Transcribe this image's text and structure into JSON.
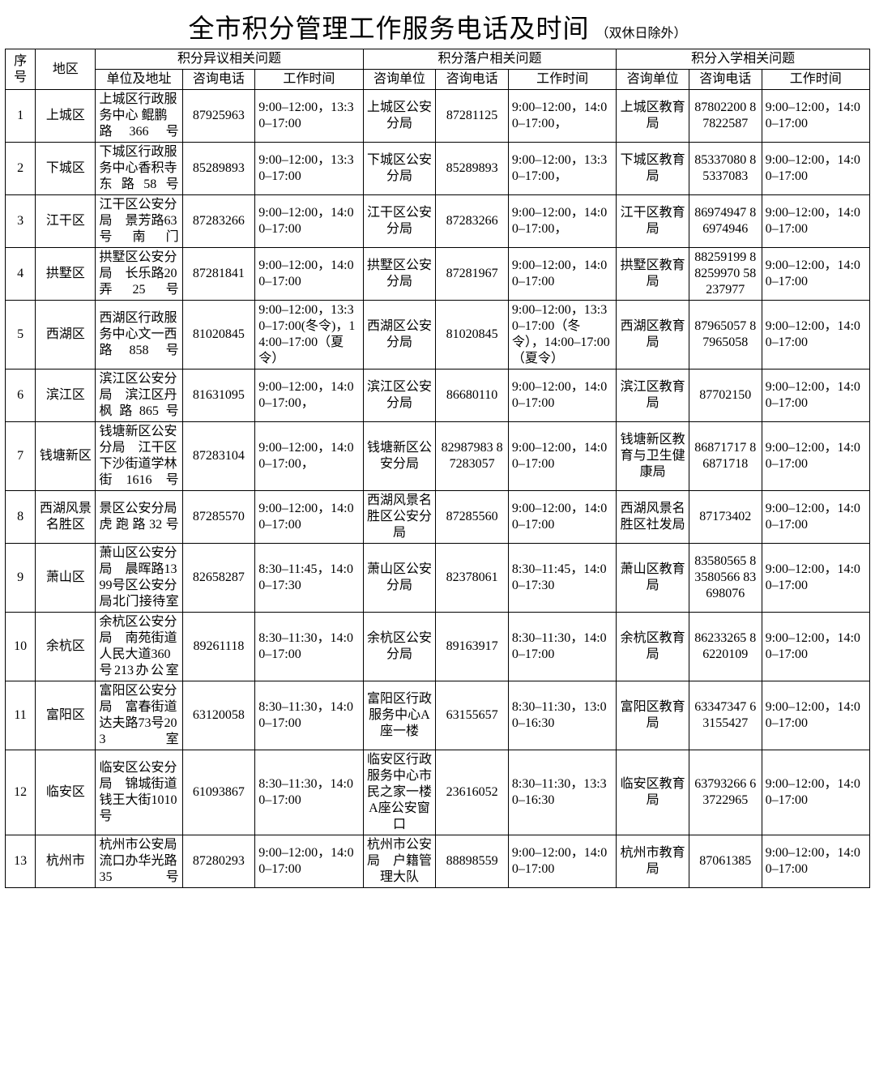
{
  "title": "全市积分管理工作服务电话及时间",
  "title_suffix": "（双休日除外）",
  "headers": {
    "idx": "序号",
    "area": "地区",
    "group_dispute": "积分异议相关问题",
    "group_settle": "积分落户相关问题",
    "group_school": "积分入学相关问题",
    "unit_addr": "单位及地址",
    "consult_unit": "咨询单位",
    "consult_tel": "咨询电话",
    "work_time": "工作时间"
  },
  "rows": [
    {
      "idx": "1",
      "area": "上城区",
      "d_unit": "上城区行政服务中心 鲲鹏路366号",
      "d_tel": "87925963",
      "d_time": "9:00–12:00，13:30–17:00",
      "s_unit": "上城区公安分局",
      "s_tel": "87281125",
      "s_time": "9:00–12:00，14:00–17:00，",
      "e_unit": "上城区教育局",
      "e_tel": "87802200 87822587",
      "e_time": "9:00–12:00，14:00–17:00"
    },
    {
      "idx": "2",
      "area": "下城区",
      "d_unit": "下城区行政服务中心香积寺东路58号",
      "d_tel": "85289893",
      "d_time": "9:00–12:00，13:30–17:00",
      "s_unit": "下城区公安分局",
      "s_tel": "85289893",
      "s_time": "9:00–12:00，13:30–17:00，",
      "e_unit": "下城区教育局",
      "e_tel": "85337080 85337083",
      "e_time": "9:00–12:00，14:00–17:00"
    },
    {
      "idx": "3",
      "area": "江干区",
      "d_unit": "江干区公安分局　景芳路63号南门",
      "d_tel": "87283266",
      "d_time": "9:00–12:00，14:00–17:00",
      "s_unit": "江干区公安分局",
      "s_tel": "87283266",
      "s_time": "9:00–12:00，14:00–17:00，",
      "e_unit": "江干区教育局",
      "e_tel": "86974947 86974946",
      "e_time": "9:00–12:00，14:00–17:00"
    },
    {
      "idx": "4",
      "area": "拱墅区",
      "d_unit": "拱墅区公安分局　长乐路20弄25号",
      "d_tel": "87281841",
      "d_time": "9:00–12:00，14:00–17:00",
      "s_unit": "拱墅区公安分局",
      "s_tel": "87281967",
      "s_time": "9:00–12:00，14:00–17:00",
      "e_unit": "拱墅区教育局",
      "e_tel": "88259199 88259970 58237977",
      "e_time": "9:00–12:00，14:00–17:00"
    },
    {
      "idx": "5",
      "area": "西湖区",
      "d_unit": "西湖区行政服务中心文一西路858号",
      "d_tel": "81020845",
      "d_time": "9:00–12:00，13:30–17:00(冬令)，14:00–17:00（夏令）",
      "s_unit": "西湖区公安分局",
      "s_tel": "81020845",
      "s_time": "9:00–12:00，13:30–17:00（冬令），14:00–17:00（夏令）",
      "e_unit": "西湖区教育局",
      "e_tel": "87965057 87965058",
      "e_time": "9:00–12:00，14:00–17:00"
    },
    {
      "idx": "6",
      "area": "滨江区",
      "d_unit": "滨江区公安分局　滨江区丹枫路865号",
      "d_tel": "81631095",
      "d_time": "9:00–12:00，14:00–17:00，",
      "s_unit": "滨江区公安分局",
      "s_tel": "86680110",
      "s_time": "9:00–12:00，14:00–17:00",
      "e_unit": "滨江区教育局",
      "e_tel": "87702150",
      "e_time": "9:00–12:00，14:00–17:00"
    },
    {
      "idx": "7",
      "area": "钱塘新区",
      "d_unit": "钱塘新区公安分局　江干区下沙街道学林街1616号",
      "d_tel": "87283104",
      "d_time": "9:00–12:00，14:00–17:00，",
      "s_unit": "钱塘新区公安分局",
      "s_tel": "82987983 87283057",
      "s_time": "9:00–12:00，14:00–17:00",
      "e_unit": "钱塘新区教育与卫生健康局",
      "e_tel": "86871717 86871718",
      "e_time": "9:00–12:00，14:00–17:00"
    },
    {
      "idx": "8",
      "area": "西湖风景名胜区",
      "d_unit": "景区公安分局　虎跑路32号",
      "d_tel": "87285570",
      "d_time": "9:00–12:00，14:00–17:00",
      "s_unit": "西湖风景名胜区公安分局",
      "s_tel": "87285560",
      "s_time": "9:00–12:00，14:00–17:00",
      "e_unit": "西湖风景名胜区社发局",
      "e_tel": "87173402",
      "e_time": "9:00–12:00，14:00–17:00"
    },
    {
      "idx": "9",
      "area": "萧山区",
      "d_unit": "萧山区公安分局　晨晖路1399号区公安分局北门接待室",
      "d_tel": "82658287",
      "d_time": "8:30–11:45，14:00–17:30",
      "s_unit": "萧山区公安分局",
      "s_tel": "82378061",
      "s_time": "8:30–11:45，14:00–17:30",
      "e_unit": "萧山区教育局",
      "e_tel": "83580565 83580566 83698076",
      "e_time": "9:00–12:00，14:00–17:00"
    },
    {
      "idx": "10",
      "area": "余杭区",
      "d_unit": "余杭区公安分局　南苑街道人民大道360号213办公室",
      "d_tel": "89261118",
      "d_time": "8:30–11:30，14:00–17:00",
      "s_unit": "余杭区公安分局",
      "s_tel": "89163917",
      "s_time": "8:30–11:30，14:00–17:00",
      "e_unit": "余杭区教育局",
      "e_tel": "86233265 86220109",
      "e_time": "9:00–12:00，14:00–17:00"
    },
    {
      "idx": "11",
      "area": "富阳区",
      "d_unit": "富阳区公安分局　富春街道达夫路73号203室",
      "d_tel": "63120058",
      "d_time": "8:30–11:30，14:00–17:00",
      "s_unit": "富阳区行政服务中心A座一楼",
      "s_tel": "63155657",
      "s_time": "8:30–11:30，13:00–16:30",
      "e_unit": "富阳区教育局",
      "e_tel": "63347347 63155427",
      "e_time": "9:00–12:00，14:00–17:00"
    },
    {
      "idx": "12",
      "area": "临安区",
      "d_unit": "临安区公安分局　锦城街道钱王大街1010号",
      "d_tel": "61093867",
      "d_time": "8:30–11:30，14:00–17:00",
      "s_unit": "临安区行政服务中心市民之家一楼A座公安窗口",
      "s_tel": "23616052",
      "s_time": "8:30–11:30，13:30–16:30",
      "e_unit": "临安区教育局",
      "e_tel": "63793266 63722965",
      "e_time": "9:00–12:00，14:00–17:00"
    },
    {
      "idx": "13",
      "area": "杭州市",
      "d_unit": "杭州市公安局流口办华光路35号",
      "d_tel": "87280293",
      "d_time": "9:00–12:00，14:00–17:00",
      "s_unit": "杭州市公安局　户籍管理大队",
      "s_tel": "88898559",
      "s_time": "9:00–12:00，14:00–17:00",
      "e_unit": "杭州市教育局",
      "e_tel": "87061385",
      "e_time": "9:00–12:00，14:00–17:00"
    }
  ]
}
